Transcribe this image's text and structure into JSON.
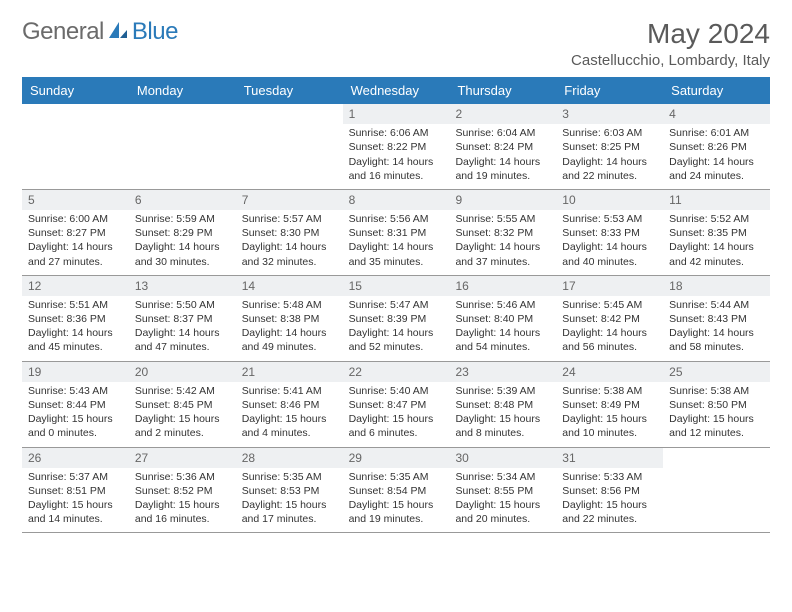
{
  "logo": {
    "part1": "General",
    "part2": "Blue"
  },
  "title": "May 2024",
  "location": "Castellucchio, Lombardy, Italy",
  "colors": {
    "header_bg": "#2a7ab9",
    "header_text": "#ffffff",
    "daynum_bg": "#eef0f2",
    "border": "#999999",
    "body_text": "#333333",
    "title_text": "#5a5a5a"
  },
  "day_names": [
    "Sunday",
    "Monday",
    "Tuesday",
    "Wednesday",
    "Thursday",
    "Friday",
    "Saturday"
  ],
  "weeks": [
    [
      {
        "day": "",
        "sunrise": "",
        "sunset": "",
        "daylight1": "",
        "daylight2": ""
      },
      {
        "day": "",
        "sunrise": "",
        "sunset": "",
        "daylight1": "",
        "daylight2": ""
      },
      {
        "day": "",
        "sunrise": "",
        "sunset": "",
        "daylight1": "",
        "daylight2": ""
      },
      {
        "day": "1",
        "sunrise": "Sunrise: 6:06 AM",
        "sunset": "Sunset: 8:22 PM",
        "daylight1": "Daylight: 14 hours",
        "daylight2": "and 16 minutes."
      },
      {
        "day": "2",
        "sunrise": "Sunrise: 6:04 AM",
        "sunset": "Sunset: 8:24 PM",
        "daylight1": "Daylight: 14 hours",
        "daylight2": "and 19 minutes."
      },
      {
        "day": "3",
        "sunrise": "Sunrise: 6:03 AM",
        "sunset": "Sunset: 8:25 PM",
        "daylight1": "Daylight: 14 hours",
        "daylight2": "and 22 minutes."
      },
      {
        "day": "4",
        "sunrise": "Sunrise: 6:01 AM",
        "sunset": "Sunset: 8:26 PM",
        "daylight1": "Daylight: 14 hours",
        "daylight2": "and 24 minutes."
      }
    ],
    [
      {
        "day": "5",
        "sunrise": "Sunrise: 6:00 AM",
        "sunset": "Sunset: 8:27 PM",
        "daylight1": "Daylight: 14 hours",
        "daylight2": "and 27 minutes."
      },
      {
        "day": "6",
        "sunrise": "Sunrise: 5:59 AM",
        "sunset": "Sunset: 8:29 PM",
        "daylight1": "Daylight: 14 hours",
        "daylight2": "and 30 minutes."
      },
      {
        "day": "7",
        "sunrise": "Sunrise: 5:57 AM",
        "sunset": "Sunset: 8:30 PM",
        "daylight1": "Daylight: 14 hours",
        "daylight2": "and 32 minutes."
      },
      {
        "day": "8",
        "sunrise": "Sunrise: 5:56 AM",
        "sunset": "Sunset: 8:31 PM",
        "daylight1": "Daylight: 14 hours",
        "daylight2": "and 35 minutes."
      },
      {
        "day": "9",
        "sunrise": "Sunrise: 5:55 AM",
        "sunset": "Sunset: 8:32 PM",
        "daylight1": "Daylight: 14 hours",
        "daylight2": "and 37 minutes."
      },
      {
        "day": "10",
        "sunrise": "Sunrise: 5:53 AM",
        "sunset": "Sunset: 8:33 PM",
        "daylight1": "Daylight: 14 hours",
        "daylight2": "and 40 minutes."
      },
      {
        "day": "11",
        "sunrise": "Sunrise: 5:52 AM",
        "sunset": "Sunset: 8:35 PM",
        "daylight1": "Daylight: 14 hours",
        "daylight2": "and 42 minutes."
      }
    ],
    [
      {
        "day": "12",
        "sunrise": "Sunrise: 5:51 AM",
        "sunset": "Sunset: 8:36 PM",
        "daylight1": "Daylight: 14 hours",
        "daylight2": "and 45 minutes."
      },
      {
        "day": "13",
        "sunrise": "Sunrise: 5:50 AM",
        "sunset": "Sunset: 8:37 PM",
        "daylight1": "Daylight: 14 hours",
        "daylight2": "and 47 minutes."
      },
      {
        "day": "14",
        "sunrise": "Sunrise: 5:48 AM",
        "sunset": "Sunset: 8:38 PM",
        "daylight1": "Daylight: 14 hours",
        "daylight2": "and 49 minutes."
      },
      {
        "day": "15",
        "sunrise": "Sunrise: 5:47 AM",
        "sunset": "Sunset: 8:39 PM",
        "daylight1": "Daylight: 14 hours",
        "daylight2": "and 52 minutes."
      },
      {
        "day": "16",
        "sunrise": "Sunrise: 5:46 AM",
        "sunset": "Sunset: 8:40 PM",
        "daylight1": "Daylight: 14 hours",
        "daylight2": "and 54 minutes."
      },
      {
        "day": "17",
        "sunrise": "Sunrise: 5:45 AM",
        "sunset": "Sunset: 8:42 PM",
        "daylight1": "Daylight: 14 hours",
        "daylight2": "and 56 minutes."
      },
      {
        "day": "18",
        "sunrise": "Sunrise: 5:44 AM",
        "sunset": "Sunset: 8:43 PM",
        "daylight1": "Daylight: 14 hours",
        "daylight2": "and 58 minutes."
      }
    ],
    [
      {
        "day": "19",
        "sunrise": "Sunrise: 5:43 AM",
        "sunset": "Sunset: 8:44 PM",
        "daylight1": "Daylight: 15 hours",
        "daylight2": "and 0 minutes."
      },
      {
        "day": "20",
        "sunrise": "Sunrise: 5:42 AM",
        "sunset": "Sunset: 8:45 PM",
        "daylight1": "Daylight: 15 hours",
        "daylight2": "and 2 minutes."
      },
      {
        "day": "21",
        "sunrise": "Sunrise: 5:41 AM",
        "sunset": "Sunset: 8:46 PM",
        "daylight1": "Daylight: 15 hours",
        "daylight2": "and 4 minutes."
      },
      {
        "day": "22",
        "sunrise": "Sunrise: 5:40 AM",
        "sunset": "Sunset: 8:47 PM",
        "daylight1": "Daylight: 15 hours",
        "daylight2": "and 6 minutes."
      },
      {
        "day": "23",
        "sunrise": "Sunrise: 5:39 AM",
        "sunset": "Sunset: 8:48 PM",
        "daylight1": "Daylight: 15 hours",
        "daylight2": "and 8 minutes."
      },
      {
        "day": "24",
        "sunrise": "Sunrise: 5:38 AM",
        "sunset": "Sunset: 8:49 PM",
        "daylight1": "Daylight: 15 hours",
        "daylight2": "and 10 minutes."
      },
      {
        "day": "25",
        "sunrise": "Sunrise: 5:38 AM",
        "sunset": "Sunset: 8:50 PM",
        "daylight1": "Daylight: 15 hours",
        "daylight2": "and 12 minutes."
      }
    ],
    [
      {
        "day": "26",
        "sunrise": "Sunrise: 5:37 AM",
        "sunset": "Sunset: 8:51 PM",
        "daylight1": "Daylight: 15 hours",
        "daylight2": "and 14 minutes."
      },
      {
        "day": "27",
        "sunrise": "Sunrise: 5:36 AM",
        "sunset": "Sunset: 8:52 PM",
        "daylight1": "Daylight: 15 hours",
        "daylight2": "and 16 minutes."
      },
      {
        "day": "28",
        "sunrise": "Sunrise: 5:35 AM",
        "sunset": "Sunset: 8:53 PM",
        "daylight1": "Daylight: 15 hours",
        "daylight2": "and 17 minutes."
      },
      {
        "day": "29",
        "sunrise": "Sunrise: 5:35 AM",
        "sunset": "Sunset: 8:54 PM",
        "daylight1": "Daylight: 15 hours",
        "daylight2": "and 19 minutes."
      },
      {
        "day": "30",
        "sunrise": "Sunrise: 5:34 AM",
        "sunset": "Sunset: 8:55 PM",
        "daylight1": "Daylight: 15 hours",
        "daylight2": "and 20 minutes."
      },
      {
        "day": "31",
        "sunrise": "Sunrise: 5:33 AM",
        "sunset": "Sunset: 8:56 PM",
        "daylight1": "Daylight: 15 hours",
        "daylight2": "and 22 minutes."
      },
      {
        "day": "",
        "sunrise": "",
        "sunset": "",
        "daylight1": "",
        "daylight2": ""
      }
    ]
  ]
}
